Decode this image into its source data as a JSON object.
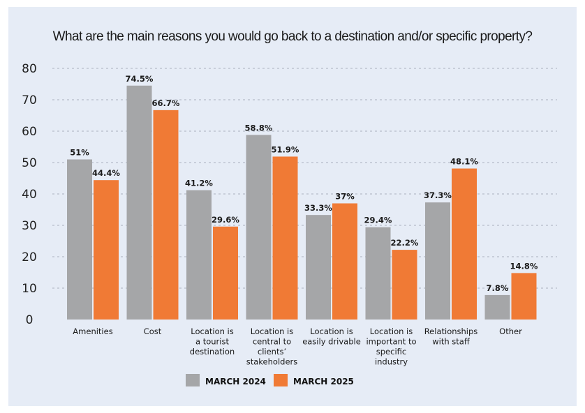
{
  "chart_data": {
    "type": "bar",
    "title": "What are the main reasons you would go back to a destination and/or specific property?",
    "xlabel": "",
    "ylabel": "",
    "ylim": [
      0,
      80
    ],
    "yticks": [
      0,
      10,
      20,
      30,
      40,
      50,
      60,
      70,
      80
    ],
    "grid": true,
    "legend_position": "bottom-center",
    "categories": [
      [
        "Amenities"
      ],
      [
        "Cost"
      ],
      [
        "Location is",
        "a tourist",
        "destination"
      ],
      [
        "Location is",
        "central to",
        "clients’",
        "stakeholders"
      ],
      [
        "Location is",
        "easily drivable"
      ],
      [
        "Location is",
        "important to",
        "specific",
        "industry"
      ],
      [
        "Relationships",
        "with staff"
      ],
      [
        "Other"
      ]
    ],
    "series": [
      {
        "name": "MARCH 2024",
        "color": "#a5a6a8",
        "values": [
          51,
          74.5,
          41.2,
          58.8,
          33.3,
          29.4,
          37.3,
          7.8
        ],
        "labels": [
          "51%",
          "74.5%",
          "41.2%",
          "58.8%",
          "33.3%",
          "29.4%",
          "37.3%",
          "7.8%"
        ]
      },
      {
        "name": "MARCH 2025",
        "color": "#f07a35",
        "values": [
          44.4,
          66.7,
          29.6,
          51.9,
          37,
          22.2,
          48.1,
          14.8
        ],
        "labels": [
          "44.4%",
          "66.7%",
          "29.6%",
          "51.9%",
          "37%",
          "22.2%",
          "48.1%",
          "14.8%"
        ]
      }
    ]
  },
  "colors": {
    "panel_background": "#e6ecf6",
    "gridline": "#a9b1bd"
  }
}
